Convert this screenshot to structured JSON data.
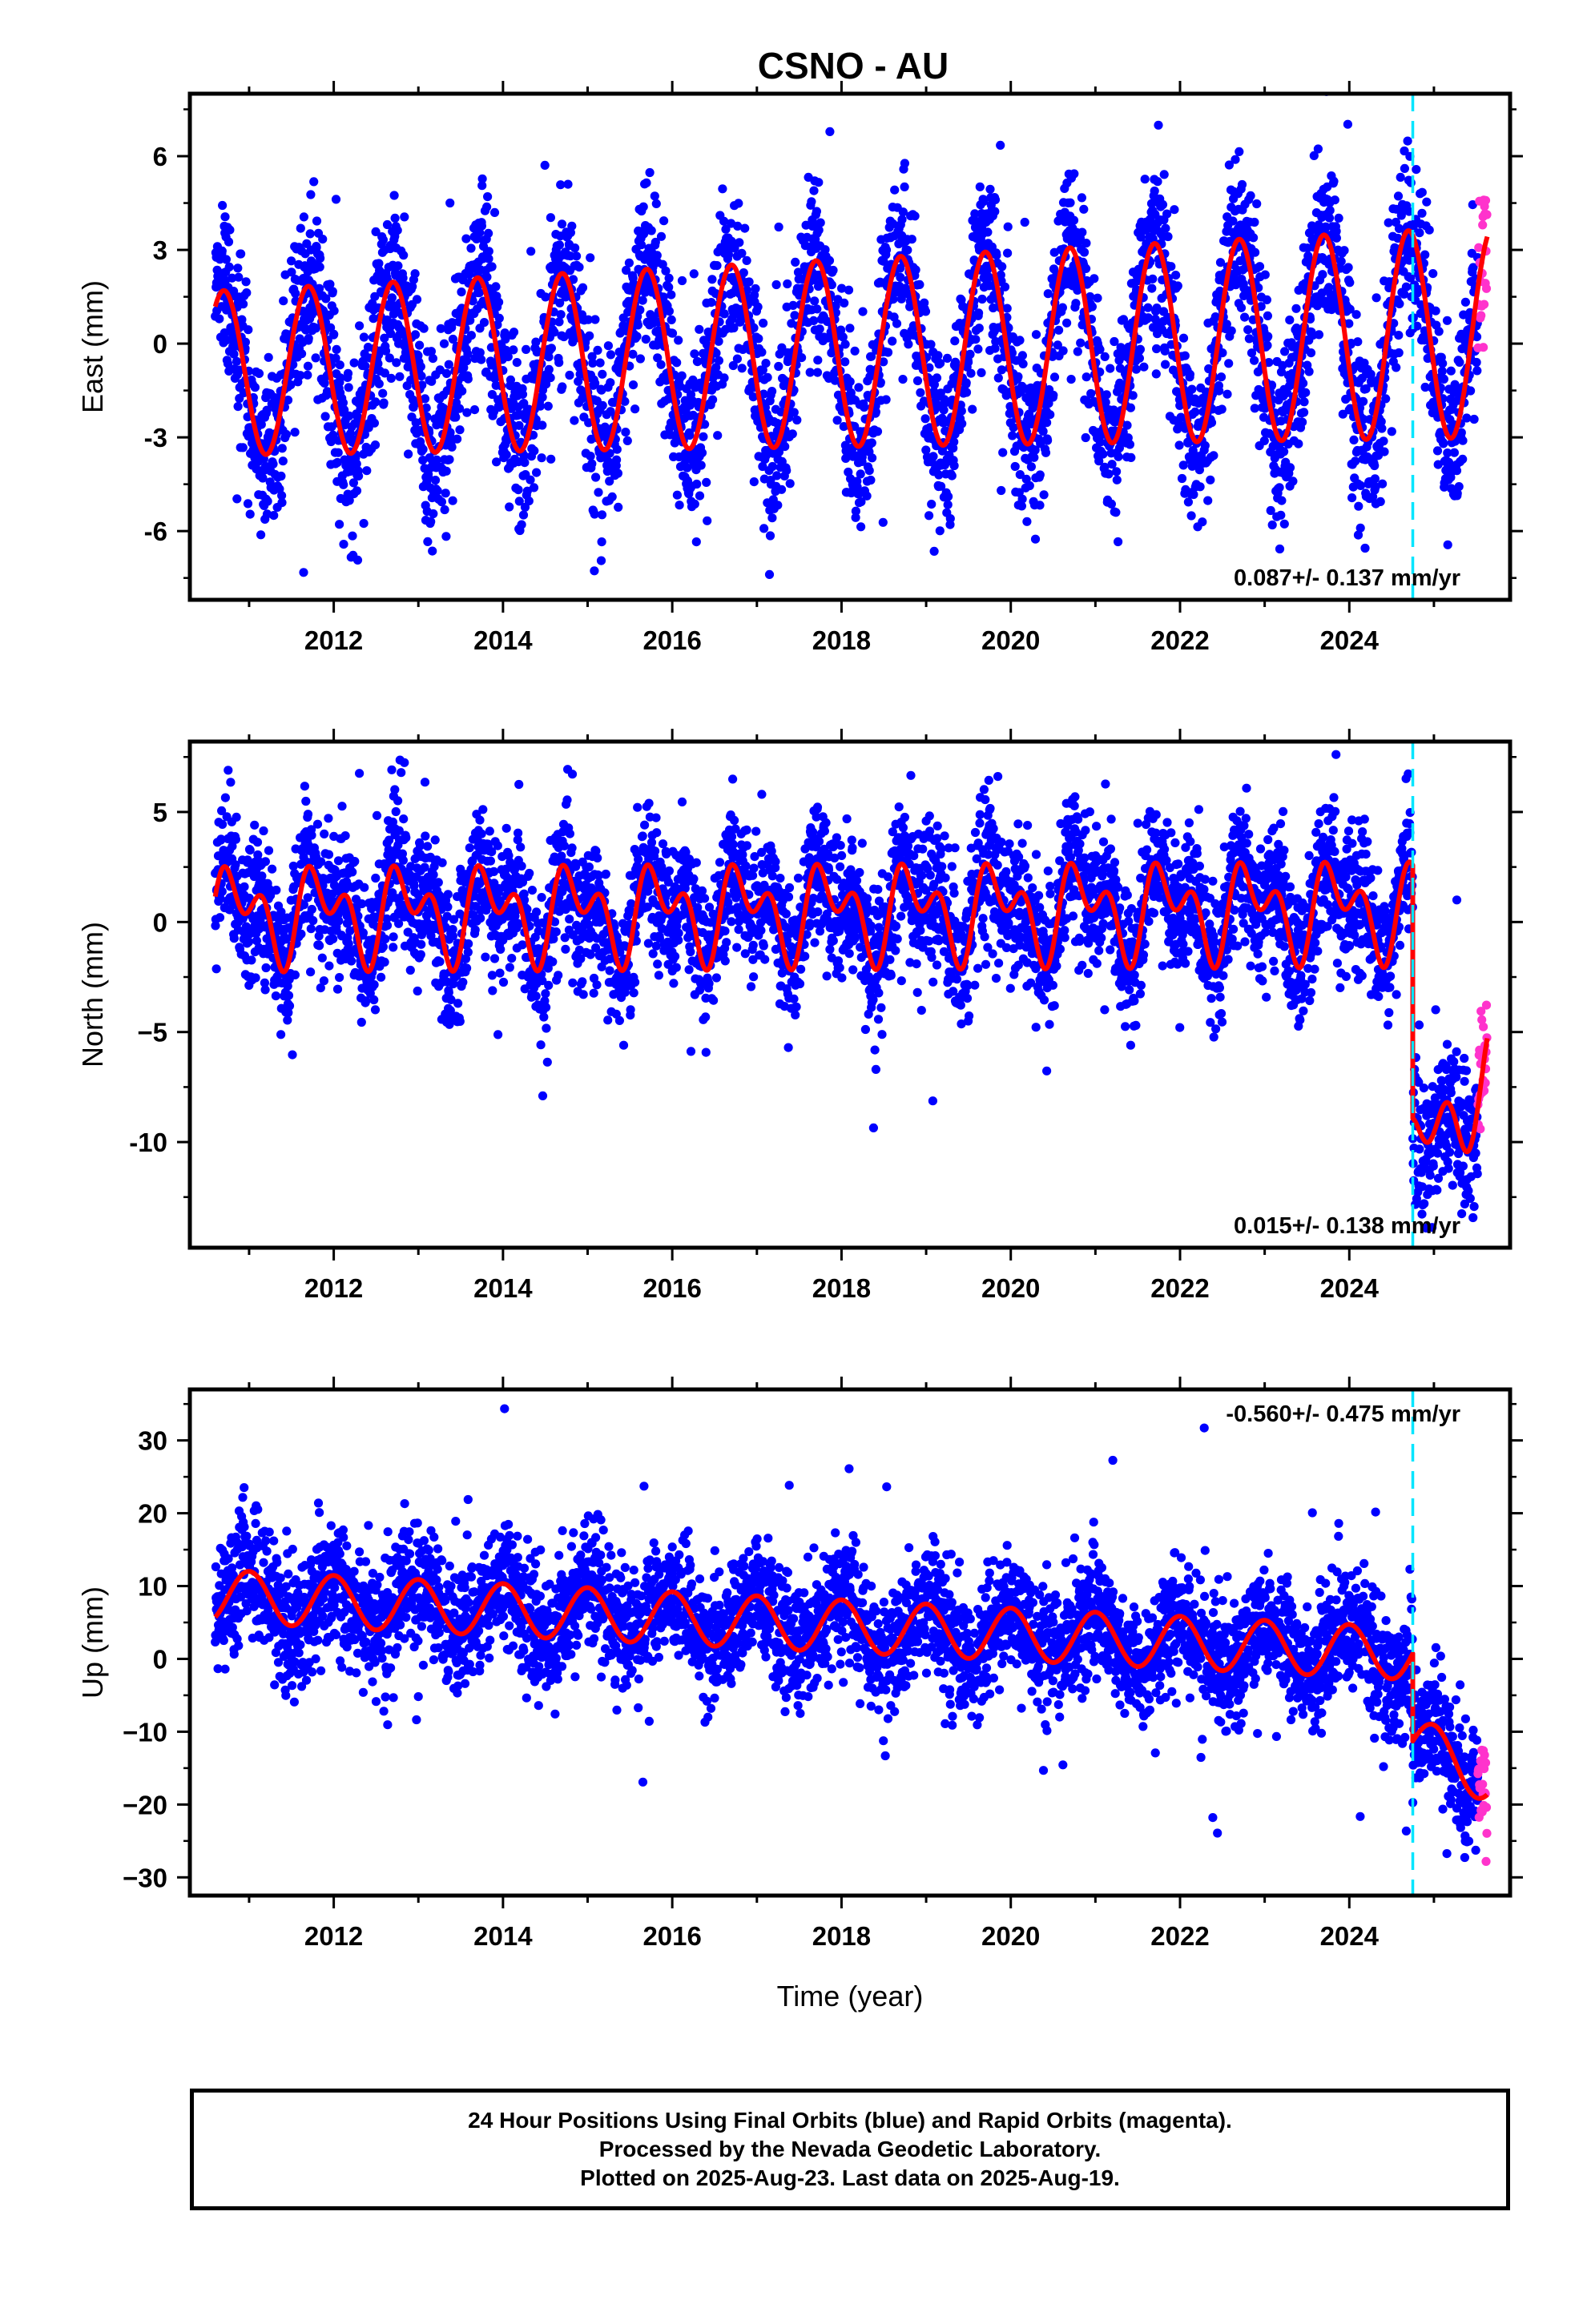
{
  "figure": {
    "title": "CSNO - AU",
    "footer": [
      "24 Hour Positions Using Final Orbits (blue) and Rapid Orbits (magenta).",
      "Processed by the Nevada Geodetic Laboratory.",
      "Plotted on 2025-Aug-23. Last data on 2025-Aug-19."
    ]
  },
  "colors": {
    "final_orbits": "#0000ff",
    "rapid_orbits": "#ff33cc",
    "model_fit": "#ff0000",
    "event_line": "#00e5ff",
    "frame": "#000000"
  },
  "chart_data": [
    {
      "type": "scatter",
      "component": "east",
      "ylabel": "East (mm)",
      "xlabel": "",
      "xlim": [
        2010.3,
        2025.9
      ],
      "ylim": [
        -8.2,
        8.0
      ],
      "xticks": [
        2012,
        2014,
        2016,
        2018,
        2020,
        2022,
        2024
      ],
      "yticks": [
        -6,
        -3,
        0,
        3,
        6
      ],
      "ytick_labels": [
        "-6",
        "-3",
        "0",
        "3",
        "6"
      ],
      "rate_label": "0.087+/- 0.137 mm/yr",
      "rate_position": "bottom-right",
      "event_year": 2024.75,
      "data_start": 2010.6,
      "data_end": 2025.63,
      "rapid_start": 2025.52,
      "model": {
        "offset": -0.3,
        "trend": 0.087,
        "annual_amp": 3.0,
        "annual_amp_change": 0.05,
        "annual_phase": 0.45,
        "semiannual_amp": 0.0,
        "semiannual_phase": 0.0,
        "step": 0.0,
        "post_step_trend": 0.0,
        "scatter": 1.4
      },
      "series": [
        {
          "name": "",
          "kind": "final_orbits_daily",
          "points": 4600
        },
        {
          "name": "",
          "kind": "rapid_orbits_daily",
          "points": 24
        },
        {
          "name": "",
          "kind": "model_fit"
        }
      ]
    },
    {
      "type": "scatter",
      "component": "north",
      "ylabel": "North (mm)",
      "xlabel": "",
      "xlim": [
        2010.3,
        2025.9
      ],
      "ylim": [
        -14.8,
        8.2
      ],
      "xticks": [
        2012,
        2014,
        2016,
        2018,
        2020,
        2022,
        2024
      ],
      "yticks": [
        -10,
        -5,
        0,
        5
      ],
      "ytick_labels": [
        "-10",
        "−5",
        "0",
        "5"
      ],
      "rate_label": "0.015+/- 0.138 mm/yr",
      "rate_position": "bottom-right",
      "event_year": 2024.75,
      "data_start": 2010.6,
      "data_end": 2025.63,
      "rapid_start": 2025.52,
      "model": {
        "offset": 0.5,
        "trend": 0.015,
        "annual_amp": 1.5,
        "annual_amp_change": 0.0,
        "annual_phase": 0.6,
        "semiannual_amp": 1.3,
        "semiannual_phase": 0.55,
        "step": -11.5,
        "post_step_trend": 4.8,
        "scatter": 1.6
      },
      "series": [
        {
          "name": "",
          "kind": "final_orbits_daily",
          "points": 4600
        },
        {
          "name": "",
          "kind": "rapid_orbits_daily",
          "points": 24
        },
        {
          "name": "",
          "kind": "model_fit"
        }
      ]
    },
    {
      "type": "scatter",
      "component": "up",
      "ylabel": "Up (mm)",
      "xlabel": "Time (year)",
      "xlim": [
        2010.3,
        2025.9
      ],
      "ylim": [
        -32.5,
        37.0
      ],
      "xticks": [
        2012,
        2014,
        2016,
        2018,
        2020,
        2022,
        2024
      ],
      "yticks": [
        -30,
        -20,
        -10,
        0,
        10,
        20,
        30
      ],
      "ytick_labels": [
        "−30",
        "−20",
        "−10",
        "0",
        "10",
        "20",
        "30"
      ],
      "rate_label": "-0.560+/- 0.475 mm/yr",
      "rate_position": "top-right",
      "event_year": 2024.75,
      "data_start": 2010.6,
      "data_end": 2025.63,
      "rapid_start": 2025.52,
      "model": {
        "offset": 4.5,
        "trend": -0.56,
        "annual_amp": 3.6,
        "annual_amp_change": 0.0,
        "annual_phase": 0.75,
        "semiannual_amp": 0.0,
        "semiannual_phase": 0.0,
        "step": -12.0,
        "post_step_trend": -5.0,
        "scatter": 4.2
      },
      "series": [
        {
          "name": "",
          "kind": "final_orbits_daily",
          "points": 4600
        },
        {
          "name": "",
          "kind": "rapid_orbits_daily",
          "points": 24
        },
        {
          "name": "",
          "kind": "model_fit"
        }
      ]
    }
  ]
}
